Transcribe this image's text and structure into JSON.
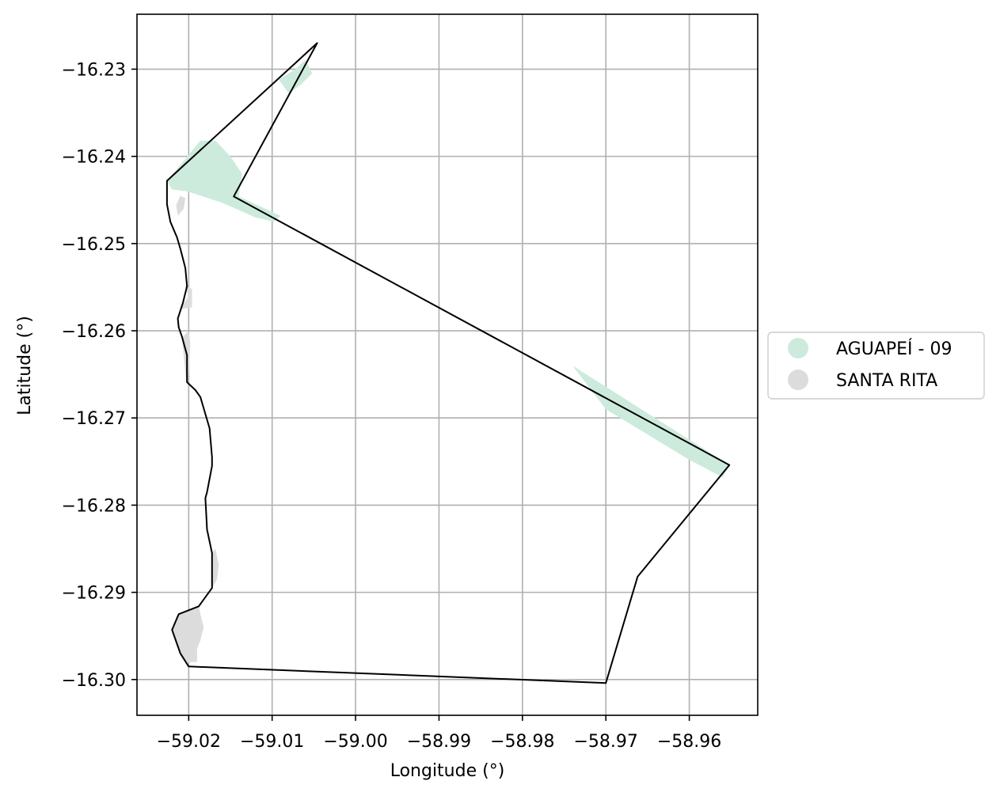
{
  "chart_data": {
    "type": "map",
    "xlabel": "Longitude (°)",
    "ylabel": "Latitude (°)",
    "xlim": [
      -59.0262,
      -58.9518
    ],
    "ylim": [
      -16.3041,
      -16.2237
    ],
    "grid": true,
    "x_ticks": [
      -59.02,
      -59.01,
      -59.0,
      -58.99,
      -58.98,
      -58.97,
      -58.96
    ],
    "x_tick_labels": [
      "−59.02",
      "−59.01",
      "−59.00",
      "−58.99",
      "−58.98",
      "−58.97",
      "−58.96"
    ],
    "y_ticks": [
      -16.23,
      -16.24,
      -16.25,
      -16.26,
      -16.27,
      -16.28,
      -16.29,
      -16.3
    ],
    "y_tick_labels": [
      "−16.23",
      "−16.24",
      "−16.25",
      "−16.26",
      "−16.27",
      "−16.28",
      "−16.29",
      "−16.30"
    ],
    "legend": {
      "placement": "center-right-outside",
      "entries": [
        {
          "label": "AGUAPEÍ - 09",
          "color": "#cdebdd"
        },
        {
          "label": "SANTA RITA",
          "color": "#dcdcdc"
        }
      ]
    },
    "boundary": {
      "stroke": "#000000",
      "coords": [
        [
          -59.0046,
          -16.227
        ],
        [
          -59.0146,
          -16.2446
        ],
        [
          -58.9552,
          -16.2754
        ],
        [
          -58.9662,
          -16.2882
        ],
        [
          -58.97,
          -16.3004
        ],
        [
          -59.02,
          -16.2985
        ],
        [
          -59.021,
          -16.297
        ],
        [
          -59.022,
          -16.2943
        ],
        [
          -59.0212,
          -16.2925
        ],
        [
          -59.0188,
          -16.2916
        ],
        [
          -59.0172,
          -16.2895
        ],
        [
          -59.0172,
          -16.2855
        ],
        [
          -59.0178,
          -16.2828
        ],
        [
          -59.018,
          -16.2792
        ],
        [
          -59.0178,
          -16.2785
        ],
        [
          -59.0172,
          -16.2755
        ],
        [
          -59.0172,
          -16.2745
        ],
        [
          -59.0175,
          -16.2712
        ],
        [
          -59.0186,
          -16.2676
        ],
        [
          -59.0192,
          -16.2668
        ],
        [
          -59.0202,
          -16.2659
        ],
        [
          -59.0202,
          -16.2628
        ],
        [
          -59.0208,
          -16.2607
        ],
        [
          -59.0212,
          -16.2596
        ],
        [
          -59.0213,
          -16.2586
        ],
        [
          -59.0207,
          -16.2568
        ],
        [
          -59.0202,
          -16.2549
        ],
        [
          -59.0204,
          -16.2528
        ],
        [
          -59.021,
          -16.2506
        ],
        [
          -59.0214,
          -16.2493
        ],
        [
          -59.0222,
          -16.2475
        ],
        [
          -59.0226,
          -16.2455
        ],
        [
          -59.0226,
          -16.2428
        ],
        [
          -59.0046,
          -16.227
        ]
      ]
    },
    "areas": [
      {
        "name": "AGUAPEÍ - 09",
        "color": "#cdebdd",
        "coords": [
          [
            -59.008,
            -16.2328
          ],
          [
            -59.0092,
            -16.2312
          ],
          [
            -59.0072,
            -16.23
          ],
          [
            -59.006,
            -16.2289
          ],
          [
            -59.0052,
            -16.2305
          ],
          [
            -59.0066,
            -16.2318
          ],
          [
            -59.008,
            -16.2328
          ]
        ]
      },
      {
        "name": "AGUAPEÍ - 09",
        "color": "#cdebdd",
        "coords": [
          [
            -59.0226,
            -16.2428
          ],
          [
            -59.0186,
            -16.2382
          ],
          [
            -59.0168,
            -16.2382
          ],
          [
            -59.015,
            -16.24
          ],
          [
            -59.0136,
            -16.242
          ],
          [
            -59.014,
            -16.2446
          ],
          [
            -59.009,
            -16.2468
          ],
          [
            -59.0098,
            -16.2475
          ],
          [
            -59.012,
            -16.247
          ],
          [
            -59.0158,
            -16.2454
          ],
          [
            -59.017,
            -16.245
          ],
          [
            -59.0202,
            -16.244
          ],
          [
            -59.022,
            -16.2438
          ],
          [
            -59.0226,
            -16.2428
          ]
        ]
      },
      {
        "name": "AGUAPEÍ - 09",
        "color": "#cdebdd",
        "coords": [
          [
            -58.974,
            -16.264
          ],
          [
            -58.9552,
            -16.2754
          ],
          [
            -58.956,
            -16.2768
          ],
          [
            -58.96,
            -16.2748
          ],
          [
            -58.97,
            -16.269
          ],
          [
            -58.974,
            -16.264
          ]
        ]
      },
      {
        "name": "SANTA RITA",
        "color": "#dcdcdc",
        "coords": [
          [
            -59.021,
            -16.2445
          ],
          [
            -59.0204,
            -16.2448
          ],
          [
            -59.0206,
            -16.246
          ],
          [
            -59.0213,
            -16.2468
          ],
          [
            -59.0215,
            -16.2456
          ],
          [
            -59.021,
            -16.2445
          ]
        ]
      },
      {
        "name": "SANTA RITA",
        "color": "#dcdcdc",
        "coords": [
          [
            -59.0205,
            -16.2548
          ],
          [
            -59.02,
            -16.256
          ],
          [
            -59.021,
            -16.2575
          ],
          [
            -59.0196,
            -16.2573
          ],
          [
            -59.0196,
            -16.2552
          ],
          [
            -59.0205,
            -16.2548
          ]
        ]
      },
      {
        "name": "SANTA RITA",
        "color": "#dcdcdc",
        "coords": [
          [
            -59.0208,
            -16.2608
          ],
          [
            -59.02,
            -16.26
          ],
          [
            -59.0198,
            -16.2615
          ],
          [
            -59.02,
            -16.265
          ],
          [
            -59.0203,
            -16.2659
          ],
          [
            -59.0208,
            -16.2608
          ]
        ]
      },
      {
        "name": "SANTA RITA",
        "color": "#dcdcdc",
        "coords": [
          [
            -59.0172,
            -16.2855
          ],
          [
            -59.0168,
            -16.285
          ],
          [
            -59.0164,
            -16.2868
          ],
          [
            -59.0166,
            -16.2885
          ],
          [
            -59.0172,
            -16.2895
          ],
          [
            -59.0172,
            -16.2855
          ]
        ]
      },
      {
        "name": "SANTA RITA",
        "color": "#dcdcdc",
        "coords": [
          [
            -59.0188,
            -16.2916
          ],
          [
            -59.0212,
            -16.2925
          ],
          [
            -59.022,
            -16.2943
          ],
          [
            -59.021,
            -16.297
          ],
          [
            -59.0202,
            -16.298
          ],
          [
            -59.019,
            -16.298
          ],
          [
            -59.019,
            -16.2965
          ],
          [
            -59.0186,
            -16.2955
          ],
          [
            -59.0182,
            -16.294
          ],
          [
            -59.0186,
            -16.2925
          ],
          [
            -59.0188,
            -16.2916
          ]
        ]
      }
    ]
  }
}
